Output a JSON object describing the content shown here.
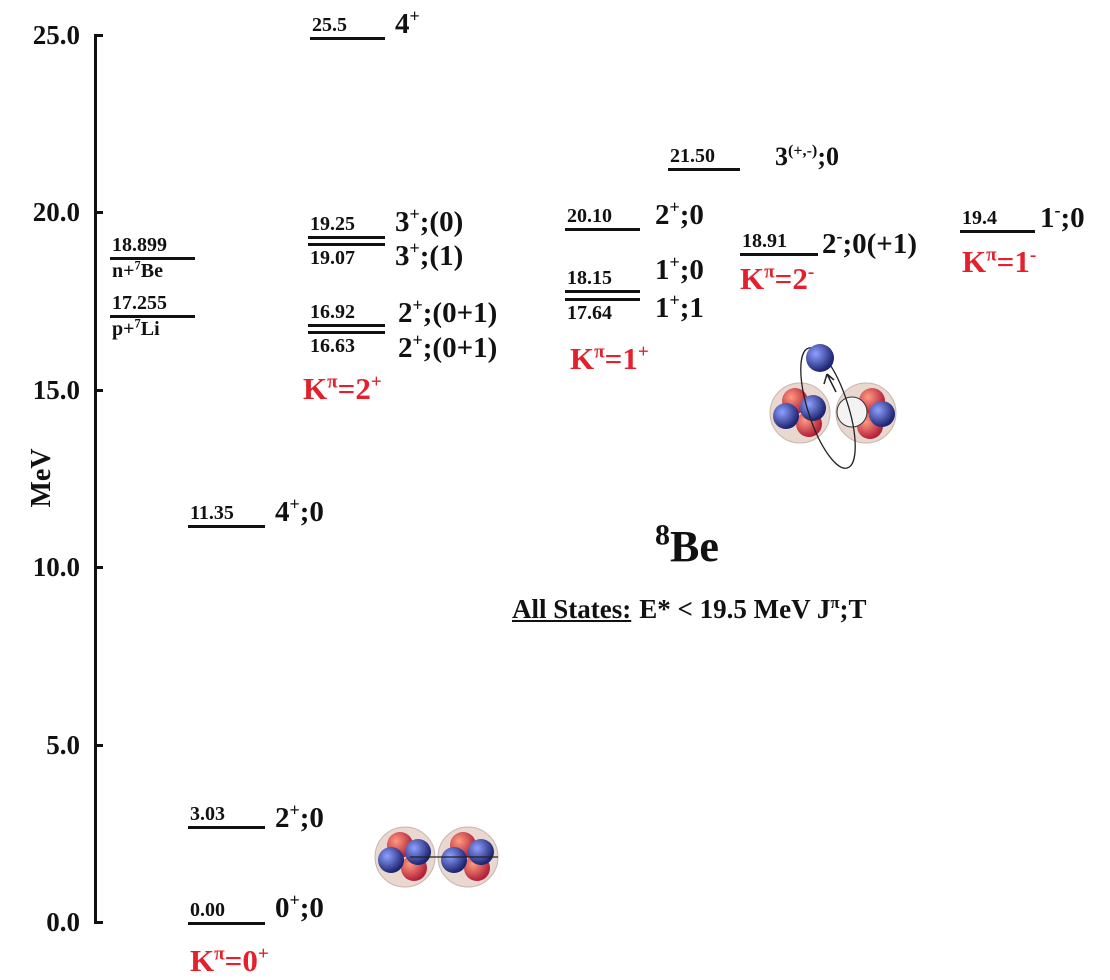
{
  "axis": {
    "label": "MeV",
    "ticks": [
      "25.0",
      "20.0",
      "15.0",
      "10.0",
      "5.0",
      "0.0"
    ]
  },
  "title": {
    "mass": "8",
    "symbol": "Be"
  },
  "subtitle": {
    "lead": "All States:",
    "parts": [
      "E* < 19.5 MeV  J",
      "π",
      ";T"
    ]
  },
  "thresholds": [
    {
      "energy": "18.899",
      "channel": [
        "n+",
        "7",
        "Be"
      ]
    },
    {
      "energy": "17.255",
      "channel": [
        "p+",
        "7",
        "Li"
      ]
    }
  ],
  "levels": [
    {
      "energy": "0.00",
      "jpi": [
        "0",
        "+",
        ";0"
      ]
    },
    {
      "energy": "3.03",
      "jpi": [
        "2",
        "+",
        ";0"
      ]
    },
    {
      "energy": "11.35",
      "jpi": [
        "4",
        "+",
        ";0"
      ]
    },
    {
      "energy": "16.63",
      "jpi": [
        "2",
        "+",
        ";(0+1)"
      ]
    },
    {
      "energy": "16.92",
      "jpi": [
        "2",
        "+",
        ";(0+1)"
      ]
    },
    {
      "energy": "19.07",
      "jpi": [
        "3",
        "+",
        ";(1)"
      ]
    },
    {
      "energy": "19.25",
      "jpi": [
        "3",
        "+",
        ";(0)"
      ]
    },
    {
      "energy": "25.5",
      "jpi": [
        "4",
        "+"
      ]
    },
    {
      "energy": "17.64",
      "jpi": [
        "1",
        "+",
        ";1"
      ]
    },
    {
      "energy": "18.15",
      "jpi": [
        "1",
        "+",
        ";0"
      ]
    },
    {
      "energy": "20.10",
      "jpi": [
        "2",
        "+",
        ";0"
      ]
    },
    {
      "energy": "21.50",
      "jpi": [
        "3",
        "(+,-)",
        ";0"
      ]
    },
    {
      "energy": "18.91",
      "jpi": [
        "2",
        "-",
        ";0(+1)"
      ]
    },
    {
      "energy": "19.4",
      "jpi": [
        "1",
        "-",
        ";0"
      ]
    }
  ],
  "bands": [
    [
      "K",
      "π",
      "=0",
      "+"
    ],
    [
      "K",
      "π",
      "=2",
      "+"
    ],
    [
      "K",
      "π",
      "=1",
      "+"
    ],
    [
      "K",
      "π",
      "=2",
      "-"
    ],
    [
      "K",
      "π",
      "=1",
      "-"
    ]
  ]
}
